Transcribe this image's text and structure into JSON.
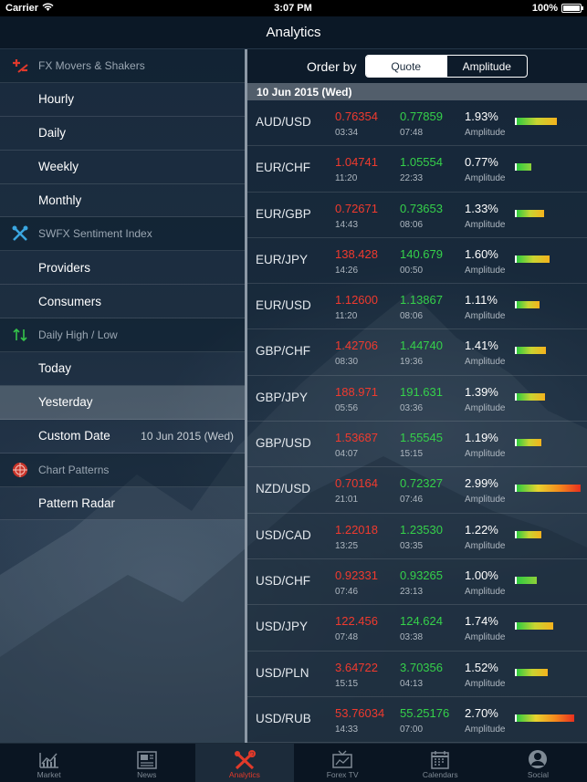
{
  "status_bar": {
    "carrier": "Carrier",
    "time": "3:07 PM",
    "battery": "100%"
  },
  "nav": {
    "title": "Analytics"
  },
  "sidebar": {
    "sections": [
      {
        "label": "FX Movers & Shakers",
        "icon": "movers-icon",
        "items": [
          {
            "label": "Hourly"
          },
          {
            "label": "Daily"
          },
          {
            "label": "Weekly"
          },
          {
            "label": "Monthly"
          }
        ]
      },
      {
        "label": "SWFX Sentiment Index",
        "icon": "tools-icon",
        "items": [
          {
            "label": "Providers"
          },
          {
            "label": "Consumers"
          }
        ]
      },
      {
        "label": "Daily High / Low",
        "icon": "arrows-up-down-icon",
        "items": [
          {
            "label": "Today"
          },
          {
            "label": "Yesterday",
            "selected": true
          },
          {
            "label": "Custom Date",
            "value": "10 Jun 2015 (Wed)"
          }
        ]
      },
      {
        "label": "Chart Patterns",
        "icon": "radar-icon",
        "items": [
          {
            "label": "Pattern Radar"
          }
        ]
      }
    ]
  },
  "order_by": {
    "label": "Order by",
    "options": [
      "Quote",
      "Amplitude"
    ],
    "selected": "Quote"
  },
  "date_header": "10 Jun 2015 (Wed)",
  "amplitude_label": "Amplitude",
  "rows": [
    {
      "pair": "AUD/USD",
      "low": "0.76354",
      "low_time": "03:34",
      "high": "0.77859",
      "high_time": "07:48",
      "pct": "1.93%",
      "amp": 1.93
    },
    {
      "pair": "EUR/CHF",
      "low": "1.04741",
      "low_time": "11:20",
      "high": "1.05554",
      "high_time": "22:33",
      "pct": "0.77%",
      "amp": 0.77
    },
    {
      "pair": "EUR/GBP",
      "low": "0.72671",
      "low_time": "14:43",
      "high": "0.73653",
      "high_time": "08:06",
      "pct": "1.33%",
      "amp": 1.33
    },
    {
      "pair": "EUR/JPY",
      "low": "138.428",
      "low_time": "14:26",
      "high": "140.679",
      "high_time": "00:50",
      "pct": "1.60%",
      "amp": 1.6
    },
    {
      "pair": "EUR/USD",
      "low": "1.12600",
      "low_time": "11:20",
      "high": "1.13867",
      "high_time": "08:06",
      "pct": "1.11%",
      "amp": 1.11
    },
    {
      "pair": "GBP/CHF",
      "low": "1.42706",
      "low_time": "08:30",
      "high": "1.44740",
      "high_time": "19:36",
      "pct": "1.41%",
      "amp": 1.41
    },
    {
      "pair": "GBP/JPY",
      "low": "188.971",
      "low_time": "05:56",
      "high": "191.631",
      "high_time": "03:36",
      "pct": "1.39%",
      "amp": 1.39
    },
    {
      "pair": "GBP/USD",
      "low": "1.53687",
      "low_time": "04:07",
      "high": "1.55545",
      "high_time": "15:15",
      "pct": "1.19%",
      "amp": 1.19
    },
    {
      "pair": "NZD/USD",
      "low": "0.70164",
      "low_time": "21:01",
      "high": "0.72327",
      "high_time": "07:46",
      "pct": "2.99%",
      "amp": 2.99
    },
    {
      "pair": "USD/CAD",
      "low": "1.22018",
      "low_time": "13:25",
      "high": "1.23530",
      "high_time": "03:35",
      "pct": "1.22%",
      "amp": 1.22
    },
    {
      "pair": "USD/CHF",
      "low": "0.92331",
      "low_time": "07:46",
      "high": "0.93265",
      "high_time": "23:13",
      "pct": "1.00%",
      "amp": 1.0
    },
    {
      "pair": "USD/JPY",
      "low": "122.456",
      "low_time": "07:48",
      "high": "124.624",
      "high_time": "03:38",
      "pct": "1.74%",
      "amp": 1.74
    },
    {
      "pair": "USD/PLN",
      "low": "3.64722",
      "low_time": "15:15",
      "high": "3.70356",
      "high_time": "04:13",
      "pct": "1.52%",
      "amp": 1.52
    },
    {
      "pair": "USD/RUB",
      "low": "53.76034",
      "low_time": "14:33",
      "high": "55.25176",
      "high_time": "07:00",
      "pct": "2.70%",
      "amp": 2.7
    }
  ],
  "tabs": [
    {
      "label": "Market",
      "icon": "market-chart-icon"
    },
    {
      "label": "News",
      "icon": "news-icon"
    },
    {
      "label": "Analytics",
      "icon": "analytics-tools-icon",
      "active": true
    },
    {
      "label": "Forex TV",
      "icon": "tv-icon"
    },
    {
      "label": "Calendars",
      "icon": "calendar-icon"
    },
    {
      "label": "Social",
      "icon": "social-icon"
    }
  ],
  "colors": {
    "low": "#f03a2e",
    "high": "#35d14a",
    "active_tab": "#e23a2a"
  }
}
